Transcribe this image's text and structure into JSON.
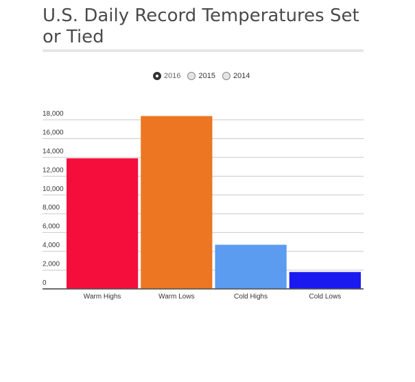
{
  "chart_data": {
    "type": "bar",
    "title": "U.S. Daily Record Temperatures Set or Tied",
    "xlabel": "",
    "ylabel": "",
    "ylim": [
      0,
      18000
    ],
    "yticks": [
      "0",
      "2,000",
      "4,000",
      "6,000",
      "8,000",
      "10,000",
      "12,000",
      "14,000",
      "16,000",
      "18,000"
    ],
    "categories": [
      "Warm Highs",
      "Warm Lows",
      "Cold Highs",
      "Cold Lows"
    ],
    "values": [
      13900,
      18400,
      4700,
      1800
    ],
    "colors": [
      "#f50d3c",
      "#ec7622",
      "#5b9bf0",
      "#1a1af0"
    ],
    "grid": true,
    "legend": {
      "placement": "top-center",
      "selected": "2016",
      "options": [
        "2016",
        "2015",
        "2014"
      ]
    }
  }
}
